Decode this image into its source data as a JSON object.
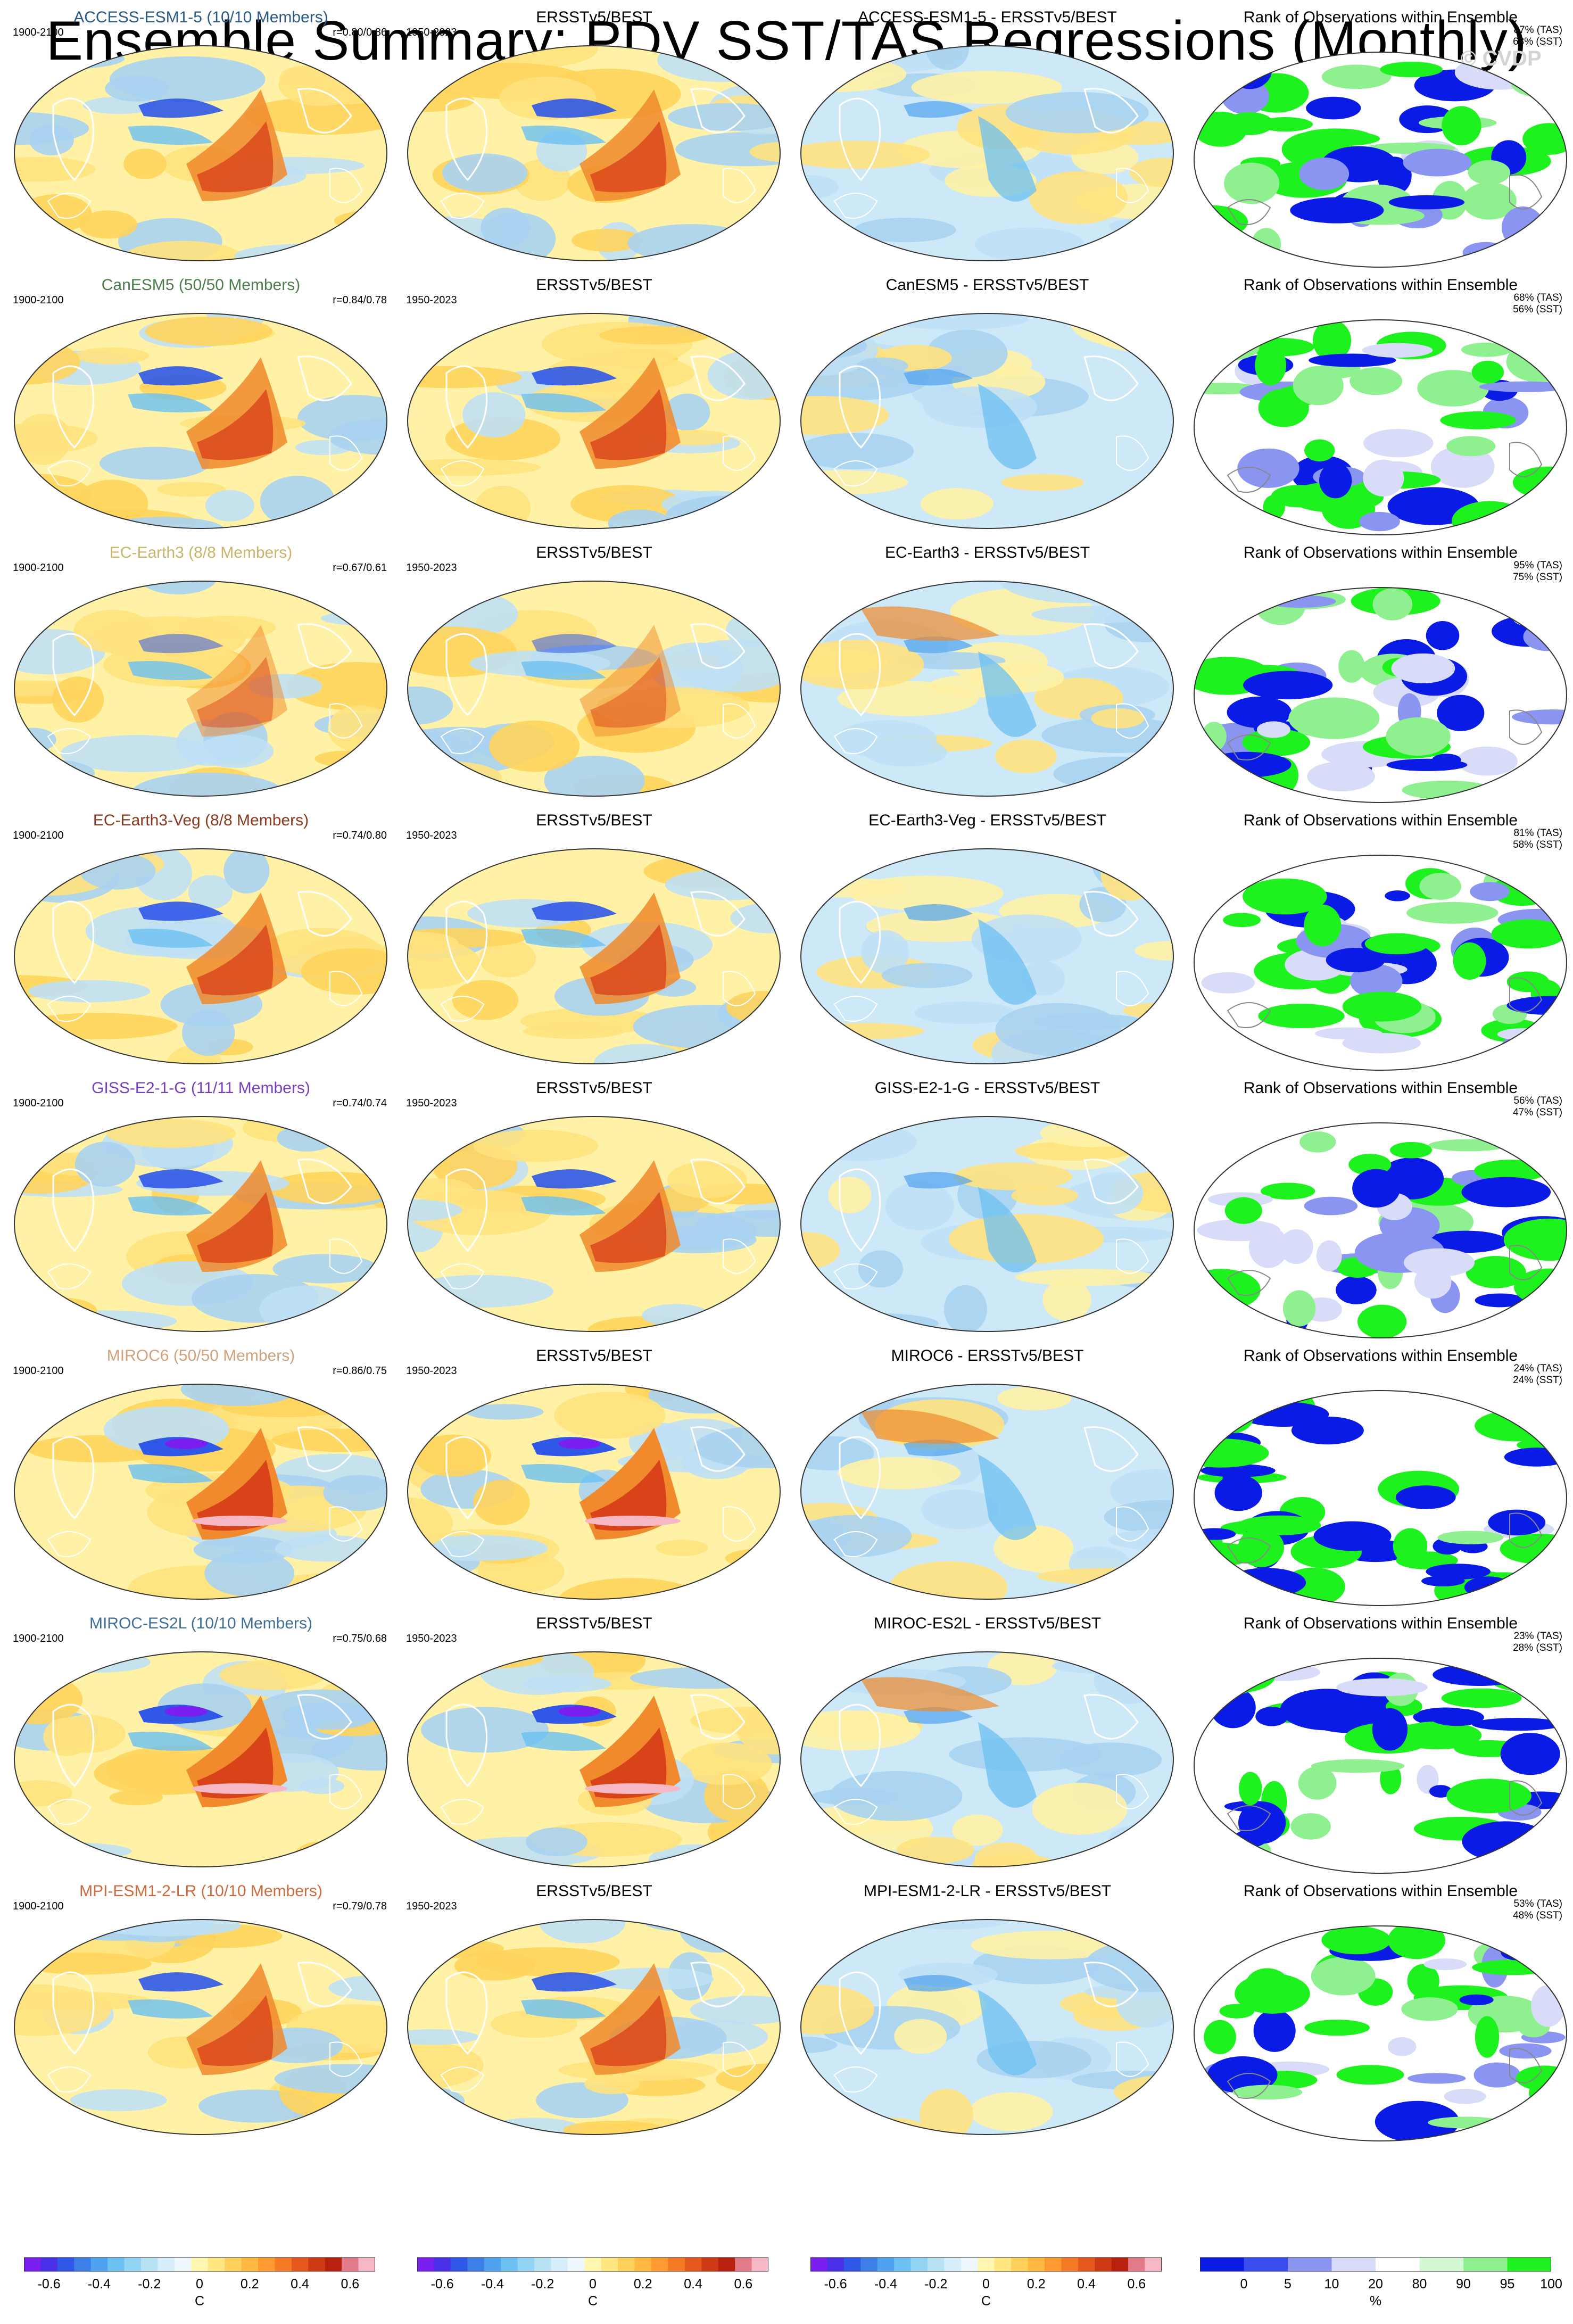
{
  "title": "Ensemble Summary: PDV SST/TAS Regressions (Monthly)",
  "watermark": "© CVDP",
  "rows": [
    {
      "model": "ACCESS-ESM1-5 (10/10 Members)",
      "model_color": "#2a5b86",
      "years": "1900-2100",
      "r": "r=0.80/0.86",
      "obs": "ERSSTv5/BEST",
      "obs_years": "1950-2023",
      "diff": "ACCESS-ESM1-5 - ERSSTv5/BEST",
      "rank": "Rank of Observations within Ensemble",
      "tas": "87% (TAS)",
      "sst": "68% (SST)",
      "tone": "normal"
    },
    {
      "model": "CanESM5 (50/50 Members)",
      "model_color": "#4d7d4d",
      "years": "1900-2100",
      "r": "r=0.84/0.78",
      "obs": "ERSSTv5/BEST",
      "obs_years": "1950-2023",
      "diff": "CanESM5 - ERSSTv5/BEST",
      "rank": "Rank of Observations within Ensemble",
      "tas": "68% (TAS)",
      "sst": "56% (SST)",
      "tone": "normal"
    },
    {
      "model": "EC-Earth3 (8/8 Members)",
      "model_color": "#c9b46a",
      "years": "1900-2100",
      "r": "r=0.67/0.61",
      "obs": "ERSSTv5/BEST",
      "obs_years": "1950-2023",
      "diff": "EC-Earth3 - ERSSTv5/BEST",
      "rank": "Rank of Observations within Ensemble",
      "tas": "95% (TAS)",
      "sst": "75% (SST)",
      "tone": "weak"
    },
    {
      "model": "EC-Earth3-Veg (8/8 Members)",
      "model_color": "#8b3a1f",
      "years": "1900-2100",
      "r": "r=0.74/0.80",
      "obs": "ERSSTv5/BEST",
      "obs_years": "1950-2023",
      "diff": "EC-Earth3-Veg - ERSSTv5/BEST",
      "rank": "Rank of Observations within Ensemble",
      "tas": "81% (TAS)",
      "sst": "58% (SST)",
      "tone": "cool"
    },
    {
      "model": "GISS-E2-1-G (11/11 Members)",
      "model_color": "#7a3fbf",
      "years": "1900-2100",
      "r": "r=0.74/0.74",
      "obs": "ERSSTv5/BEST",
      "obs_years": "1950-2023",
      "diff": "GISS-E2-1-G - ERSSTv5/BEST",
      "rank": "Rank of Observations within Ensemble",
      "tas": "56% (TAS)",
      "sst": "47% (SST)",
      "tone": "normal"
    },
    {
      "model": "MIROC6 (50/50 Members)",
      "model_color": "#d2a07a",
      "years": "1900-2100",
      "r": "r=0.86/0.75",
      "obs": "ERSSTv5/BEST",
      "obs_years": "1950-2023",
      "diff": "MIROC6 - ERSSTv5/BEST",
      "rank": "Rank of Observations within Ensemble",
      "tas": "24% (TAS)",
      "sst": "24% (SST)",
      "tone": "strong"
    },
    {
      "model": "MIROC-ES2L (10/10 Members)",
      "model_color": "#3f6f96",
      "years": "1900-2100",
      "r": "r=0.75/0.68",
      "obs": "ERSSTv5/BEST",
      "obs_years": "1950-2023",
      "diff": "MIROC-ES2L - ERSSTv5/BEST",
      "rank": "Rank of Observations within Ensemble",
      "tas": "23% (TAS)",
      "sst": "28% (SST)",
      "tone": "strong"
    },
    {
      "model": "MPI-ESM1-2-LR (10/10 Members)",
      "model_color": "#d06a3a",
      "years": "1900-2100",
      "r": "r=0.79/0.78",
      "obs": "ERSSTv5/BEST",
      "obs_years": "1950-2023",
      "diff": "MPI-ESM1-2-LR - ERSSTv5/BEST",
      "rank": "Rank of Observations within Ensemble",
      "tas": "53% (TAS)",
      "sst": "48% (SST)",
      "tone": "normal"
    }
  ],
  "colorbar": {
    "ticks": [
      "-0.6",
      "-0.4",
      "-0.2",
      "0",
      "0.2",
      "0.4",
      "0.6"
    ],
    "unit": "C",
    "colors": [
      "#7a1ff0",
      "#4a30e6",
      "#2f57e8",
      "#3c7fe8",
      "#4fa3ee",
      "#6cc0f2",
      "#92d4f4",
      "#b7e2f6",
      "#d6eef9",
      "#eef7fb",
      "#fff6b0",
      "#ffe680",
      "#ffd05a",
      "#ffb840",
      "#ff9a30",
      "#f57a24",
      "#e55a1c",
      "#cf3b14",
      "#b8210e",
      "#e37a8a",
      "#f6b8c4"
    ]
  },
  "rank_colorbar": {
    "ticks": [
      "0",
      "5",
      "10",
      "20",
      "80",
      "90",
      "95",
      "100"
    ],
    "unit": "%",
    "colors": [
      "#0a1be6",
      "#3a4ef0",
      "#8a95f2",
      "#d8dcf8",
      "#ffffff",
      "#d4f8d4",
      "#8ef08e",
      "#1ef21e"
    ]
  }
}
